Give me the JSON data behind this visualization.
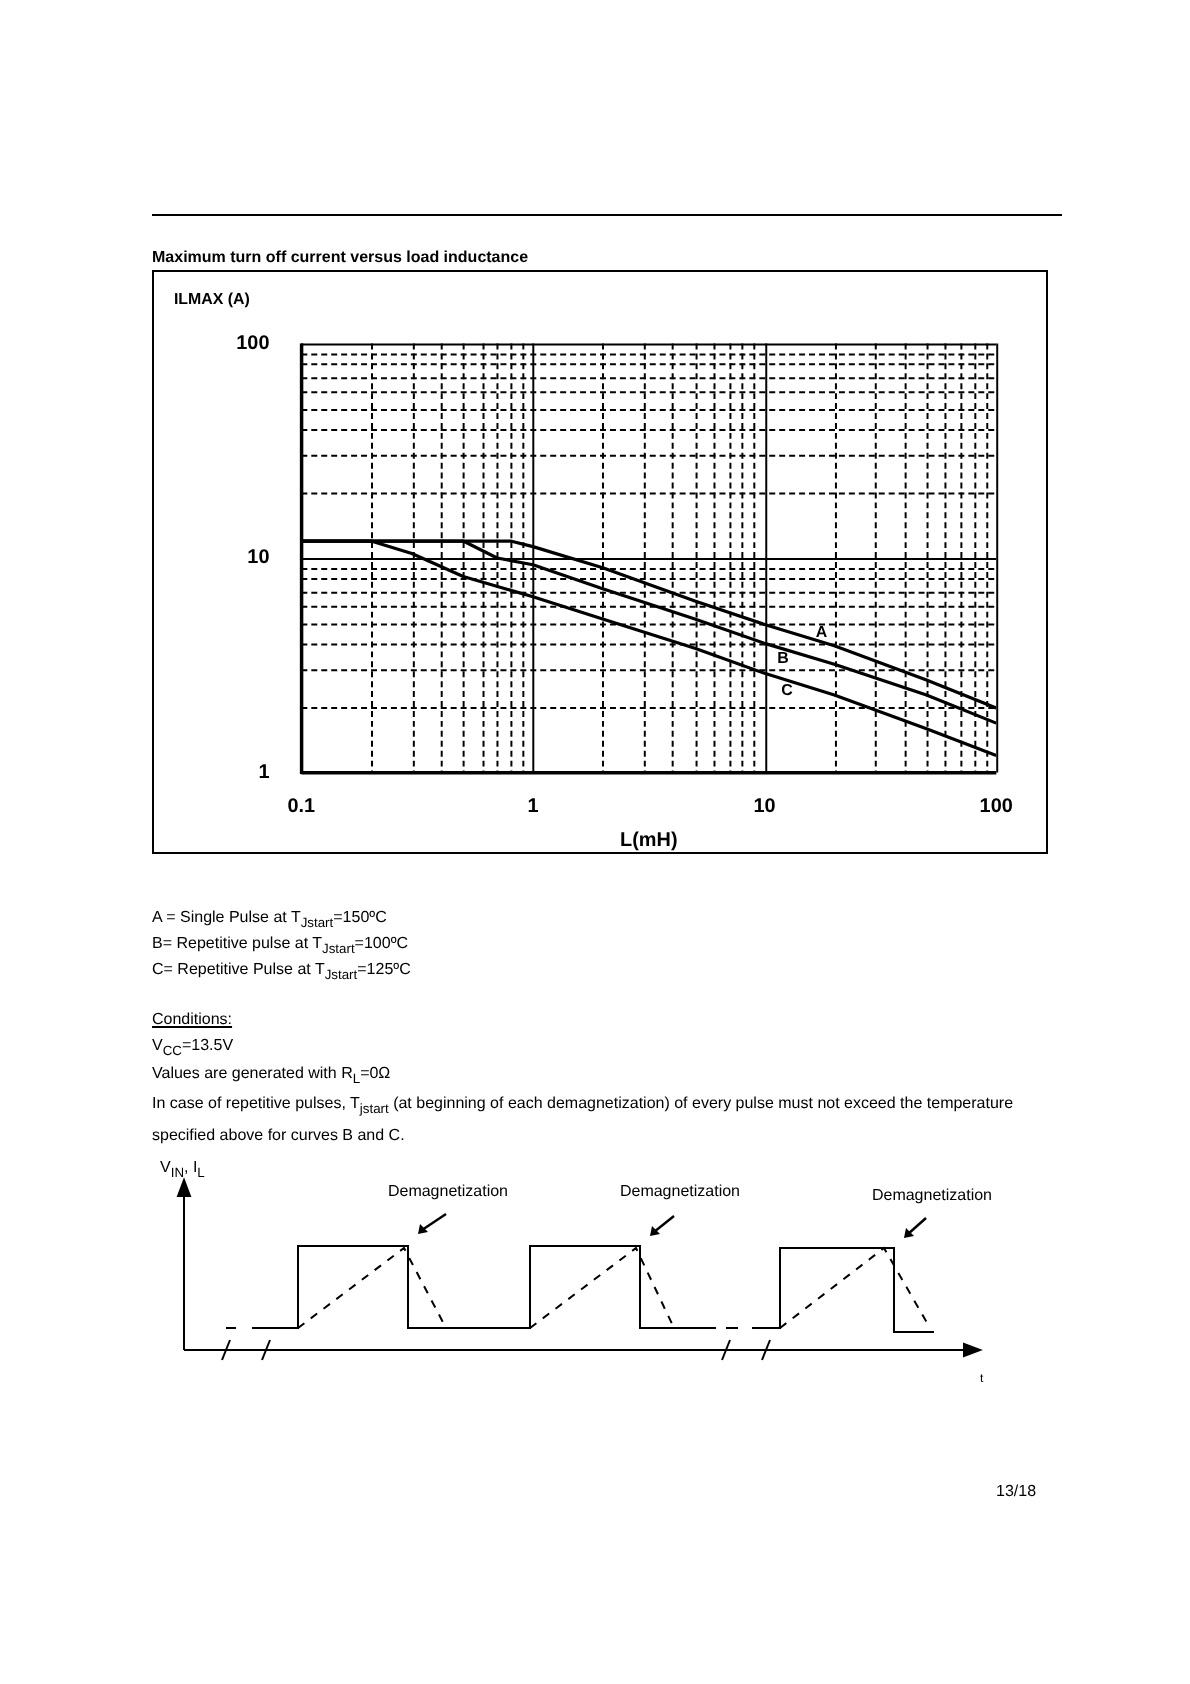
{
  "chart_data": {
    "type": "line",
    "title": "Maximum turn off current versus load inductance",
    "xlabel": "L(mH)",
    "ylabel": "ILMAX (A)",
    "log": "xy",
    "grid": true,
    "legend": false,
    "marker": "none",
    "line_style": "solid",
    "xlim": [
      0.1,
      100
    ],
    "ylim": [
      1,
      100
    ],
    "xticks": [
      0.1,
      {
        "value": 0.2,
        "label": null
      },
      {
        "value": 0.3,
        "label": null
      },
      {
        "value": 0.4,
        "label": null
      },
      {
        "value": 0.5,
        "label": null
      },
      {
        "value": 0.6,
        "label": null
      },
      {
        "value": 0.7,
        "label": null
      },
      {
        "value": 0.8,
        "label": null
      },
      {
        "value": 0.9,
        "label": null
      },
      1,
      {
        "value": 2,
        "label": null
      },
      {
        "value": 3,
        "label": null
      },
      {
        "value": 4,
        "label": null
      },
      {
        "value": 5,
        "label": null
      },
      {
        "value": 6,
        "label": null
      },
      {
        "value": 7,
        "label": null
      },
      {
        "value": 8,
        "label": null
      },
      {
        "value": 9,
        "label": null
      },
      10,
      {
        "value": 20,
        "label": null
      },
      {
        "value": 30,
        "label": null
      },
      {
        "value": 40,
        "label": null
      },
      {
        "value": 50,
        "label": null
      },
      {
        "value": 60,
        "label": null
      },
      {
        "value": 70,
        "label": null
      },
      {
        "value": 80,
        "label": null
      },
      {
        "value": 90,
        "label": null
      },
      100
    ],
    "yticks": [
      1,
      {
        "value": 2,
        "label": null
      },
      {
        "value": 3,
        "label": null
      },
      {
        "value": 4,
        "label": null
      },
      {
        "value": 5,
        "label": null
      },
      {
        "value": 6,
        "label": null
      },
      {
        "value": 7,
        "label": null
      },
      {
        "value": 8,
        "label": null
      },
      {
        "value": 9,
        "label": null
      },
      10,
      {
        "value": 20,
        "label": null
      },
      {
        "value": 30,
        "label": null
      },
      {
        "value": 40,
        "label": null
      },
      {
        "value": 50,
        "label": null
      },
      {
        "value": 60,
        "label": null
      },
      {
        "value": 70,
        "label": null
      },
      {
        "value": 80,
        "label": null
      },
      {
        "value": 90,
        "label": null
      },
      100
    ],
    "series": [
      {
        "color": "#000000",
        "x": [
          0.1,
          0.8,
          1,
          2,
          5,
          10,
          20,
          50,
          100
        ],
        "values": [
          12,
          12,
          11.3,
          9,
          6.3,
          4.9,
          3.9,
          2.7,
          2
        ]
      },
      {
        "color": "#000000",
        "x": [
          0.1,
          0.5,
          0.7,
          1,
          2,
          5,
          10,
          20,
          50,
          100
        ],
        "values": [
          12,
          12,
          10,
          9.3,
          7.2,
          5.2,
          4,
          3.2,
          2.3,
          1.7
        ]
      },
      {
        "color": "#000000",
        "x": [
          0.1,
          0.2,
          0.3,
          0.5,
          1,
          2,
          5,
          10,
          20,
          50,
          100
        ],
        "values": [
          12,
          12,
          10.5,
          8.2,
          6.6,
          5.2,
          3.8,
          2.9,
          2.3,
          1.6,
          1.2
        ]
      }
    ],
    "annotations": [
      {
        "text": "A",
        "x": 17.6,
        "y": 4.5
      },
      {
        "text": "B",
        "x": 12,
        "y": 3.4
      },
      {
        "text": "C",
        "x": 12.5,
        "y": 2.4
      },
      "A = Single Pulse at T$_{Jstart}$=150ºC",
      "B= Repetitive pulse at T$_{Jstart}$=100ºC",
      "C= Repetitive Pulse at T$_{Jstart}$=125ºC",
      "Conditions:",
      "V$_{CC}$=13.5V",
      "Values are generated with R$_{L}$=0Ω",
      "In case of repetitive pulses, T$_{jstart}$ (at beginning of each demagnetization) of every pulse must not exceed the temperature specified above for curves B and C.",
      "V$_{IN}$, I$_{L}$",
      "Demagnetization",
      "Demagnetization",
      "Demagnetization",
      "t",
      "13/18"
    ]
  }
}
